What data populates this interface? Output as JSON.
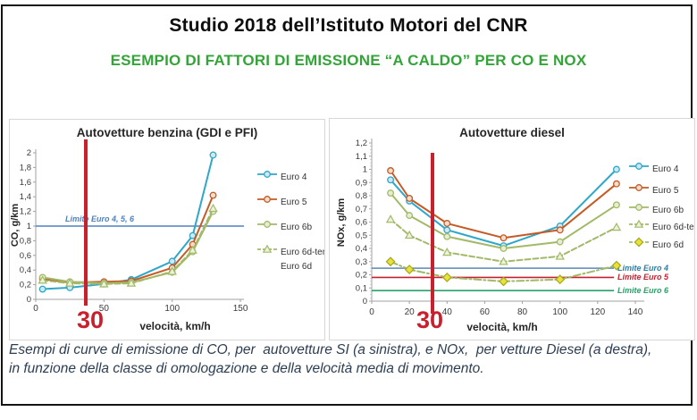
{
  "header": {
    "title": "Studio 2018 dell’Istituto Motori  del CNR",
    "subtitle": "ESEMPIO DI FATTORI DI EMISSIONE “A CALDO” PER CO E NOX"
  },
  "caption": {
    "line1": "Esempi di curve di emissione di CO, per  autovetture SI (a sinistra), e NOx,  per vetture Diesel (a destra),",
    "line2": "in funzione della classe di omologazione e della velocità media di movimento."
  },
  "colors": {
    "subtitle_green": "#33a538",
    "highlight_red": "#c9202e",
    "euro4": "#2ea7c9",
    "euro5": "#c45b27",
    "euro6": "#a2ba68",
    "euro6d_yellow": "#e6e33c",
    "limit_blue": "#4f81bd",
    "caption_text": "#2d3e52"
  },
  "chart_data": [
    {
      "type": "line",
      "title": "Autovetture benzina (GDI e PFI)",
      "xlabel": "velocità, km/h",
      "ylabel": "CO, g/km",
      "xlim": [
        0,
        150
      ],
      "ylim": [
        0,
        2
      ],
      "xticks": [
        0,
        50,
        100,
        150
      ],
      "yticks": [
        0,
        0.2,
        0.4,
        0.6,
        0.8,
        1,
        1.2,
        1.4,
        1.6,
        1.8,
        2
      ],
      "grid": false,
      "legend_position": "right",
      "x": [
        5,
        25,
        50,
        70,
        100,
        115,
        130
      ],
      "series": [
        {
          "name": "Euro 4",
          "legend": [
            "Euro 4"
          ],
          "color": "#2ea7c9",
          "marker": "circle",
          "marker_fill": "#cfe9f4",
          "dash": null,
          "values": [
            0.14,
            0.16,
            0.21,
            0.27,
            0.52,
            0.87,
            1.97
          ]
        },
        {
          "name": "Euro 5",
          "legend": [
            "Euro 5"
          ],
          "color": "#c45b27",
          "marker": "circle",
          "marker_fill": "#f6ddc9",
          "dash": null,
          "values": [
            0.28,
            0.23,
            0.24,
            0.25,
            0.43,
            0.75,
            1.42
          ]
        },
        {
          "name": "Euro 6b",
          "legend": [
            "Euro 6b"
          ],
          "color": "#a2ba68",
          "marker": "circle",
          "marker_fill": "#e7edd2",
          "dash": null,
          "values": [
            0.3,
            0.24,
            0.22,
            0.23,
            0.37,
            0.65,
            1.2
          ]
        },
        {
          "name": "Euro 6d-temp, Euro 6d",
          "legend": [
            "Euro 6d-temp,",
            "Euro 6d"
          ],
          "color": "#a2ba68",
          "marker": "triangle",
          "marker_fill": "#eef2dc",
          "dash": "6,3",
          "values": [
            0.26,
            0.22,
            0.21,
            0.22,
            0.38,
            0.67,
            1.24
          ]
        }
      ],
      "limit_lines": [
        {
          "label": "Limite Euro 4, 5, 6",
          "value": 1,
          "color": "#4f81bd",
          "label_color": "#4f81bd"
        }
      ],
      "vline": {
        "x": 30,
        "label": "30",
        "color": "#c9202e"
      }
    },
    {
      "type": "line",
      "title": "Autovetture diesel",
      "xlabel": "velocità, km/h",
      "ylabel": "NOx, g/km",
      "xlim": [
        0,
        140
      ],
      "ylim": [
        0,
        1.2
      ],
      "xticks": [
        0,
        20,
        40,
        60,
        80,
        100,
        120,
        140
      ],
      "yticks": [
        0,
        0.1,
        0.2,
        0.3,
        0.4,
        0.5,
        0.6,
        0.7,
        0.8,
        0.9,
        1,
        1.1,
        1.2
      ],
      "grid": false,
      "legend_position": "right",
      "x": [
        10,
        20,
        40,
        70,
        100,
        130
      ],
      "series": [
        {
          "name": "Euro 4",
          "legend": [
            "Euro 4"
          ],
          "color": "#2ea7c9",
          "marker": "circle",
          "marker_fill": "#cfe9f4",
          "dash": null,
          "values": [
            0.92,
            0.76,
            0.54,
            0.42,
            0.57,
            1.0
          ]
        },
        {
          "name": "Euro 5",
          "legend": [
            "Euro 5"
          ],
          "color": "#c45b27",
          "marker": "circle",
          "marker_fill": "#f6ddc9",
          "dash": null,
          "values": [
            0.99,
            0.78,
            0.59,
            0.48,
            0.54,
            0.89
          ]
        },
        {
          "name": "Euro 6b",
          "legend": [
            "Euro 6b"
          ],
          "color": "#a2ba68",
          "marker": "circle",
          "marker_fill": "#e7edd2",
          "dash": null,
          "values": [
            0.82,
            0.65,
            0.49,
            0.4,
            0.45,
            0.73
          ]
        },
        {
          "name": "Euro 6d-temp",
          "legend": [
            "Euro 6d-temp"
          ],
          "color": "#a2ba68",
          "marker": "triangle",
          "marker_fill": "#eef2dc",
          "dash": "6,3",
          "values": [
            0.62,
            0.5,
            0.37,
            0.3,
            0.34,
            0.56
          ]
        },
        {
          "name": "Euro 6d",
          "legend": [
            "Euro 6d"
          ],
          "color": "#a2ba68",
          "marker": "diamond",
          "marker_fill": "#e6e33c",
          "marker_stroke": "#a8a51d",
          "dash": "8,3,2,3",
          "values": [
            0.3,
            0.24,
            0.18,
            0.15,
            0.165,
            0.27
          ]
        }
      ],
      "limit_lines": [
        {
          "label": "Limite Euro 4",
          "value": 0.25,
          "color": "#5b87b8",
          "label_color": "#2c7ea1"
        },
        {
          "label": "Limite Euro 5",
          "value": 0.18,
          "color": "#c42130",
          "label_color": "#c42130"
        },
        {
          "label": "Limite Euro 6",
          "value": 0.08,
          "color": "#2aa06a",
          "label_color": "#2aa06a"
        }
      ],
      "vline": {
        "x": 30,
        "label": "30",
        "color": "#c9202e"
      }
    }
  ]
}
